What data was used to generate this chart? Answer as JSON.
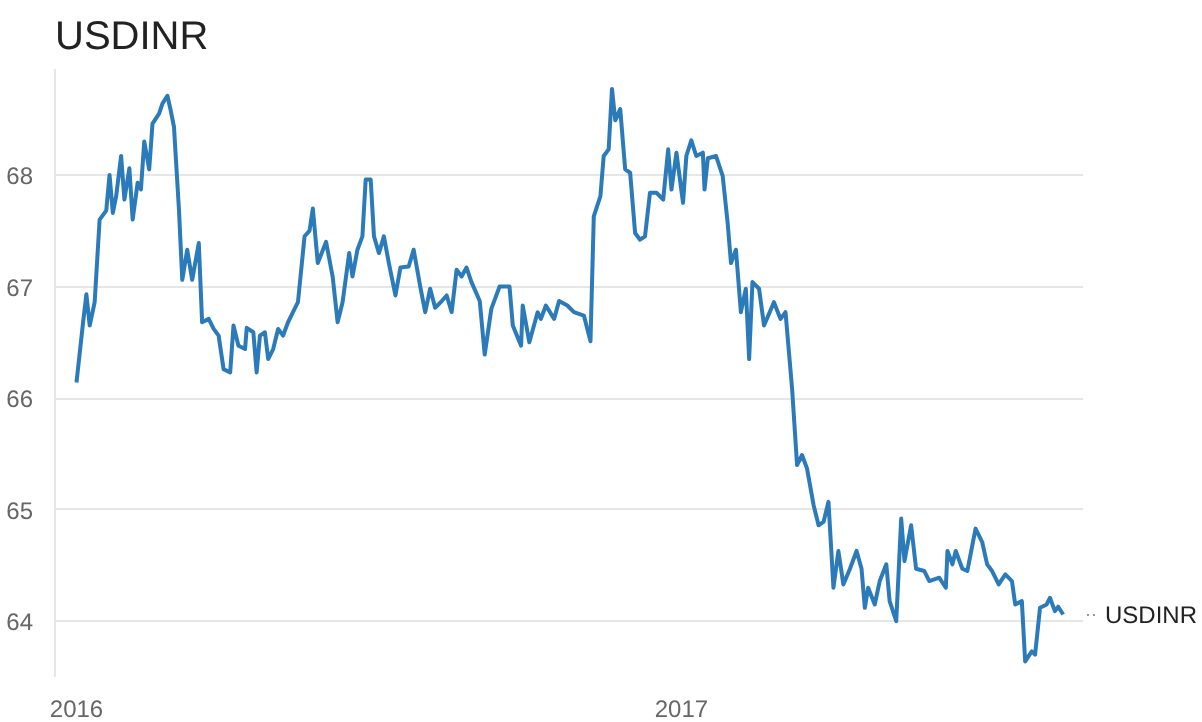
{
  "chart_data": {
    "type": "line",
    "title": "USDINR",
    "xlim": [
      "2015-12-19",
      "2017-09-01"
    ],
    "ylim": [
      63.5,
      68.95
    ],
    "xticks": [
      {
        "value": "2016-01-01",
        "label": "2016"
      },
      {
        "value": "2017-01-01",
        "label": "2017"
      }
    ],
    "yticks": [
      64,
      65,
      66,
      67,
      68
    ],
    "grid": "y",
    "legend": false,
    "x": [
      "2016-01-01",
      "2016-01-05",
      "2016-01-07",
      "2016-01-09",
      "2016-01-12",
      "2016-01-15",
      "2016-01-19",
      "2016-01-21",
      "2016-01-23",
      "2016-01-25",
      "2016-01-28",
      "2016-01-30",
      "2016-02-02",
      "2016-02-04",
      "2016-02-07",
      "2016-02-09",
      "2016-02-11",
      "2016-02-14",
      "2016-02-16",
      "2016-02-20",
      "2016-02-22",
      "2016-02-25",
      "2016-02-27",
      "2016-02-29",
      "2016-03-03",
      "2016-03-05",
      "2016-03-08",
      "2016-03-11",
      "2016-03-15",
      "2016-03-17",
      "2016-03-21",
      "2016-03-24",
      "2016-03-27",
      "2016-03-30",
      "2016-04-03",
      "2016-04-05",
      "2016-04-08",
      "2016-04-12",
      "2016-04-13",
      "2016-04-17",
      "2016-04-19",
      "2016-04-21",
      "2016-04-24",
      "2016-04-26",
      "2016-04-29",
      "2016-05-02",
      "2016-05-05",
      "2016-05-08",
      "2016-05-11",
      "2016-05-14",
      "2016-05-18",
      "2016-05-21",
      "2016-05-23",
      "2016-05-26",
      "2016-05-31",
      "2016-06-04",
      "2016-06-07",
      "2016-06-10",
      "2016-06-14",
      "2016-06-16",
      "2016-06-19",
      "2016-06-22",
      "2016-06-24",
      "2016-06-27",
      "2016-06-29",
      "2016-07-02",
      "2016-07-05",
      "2016-07-08",
      "2016-07-12",
      "2016-07-15",
      "2016-07-20",
      "2016-07-23",
      "2016-07-27",
      "2016-07-30",
      "2016-08-02",
      "2016-08-05",
      "2016-08-09",
      "2016-08-12",
      "2016-08-15",
      "2016-08-18",
      "2016-08-21",
      "2016-08-24",
      "2016-08-27",
      "2016-09-01",
      "2016-09-04",
      "2016-09-08",
      "2016-09-13",
      "2016-09-19",
      "2016-09-21",
      "2016-09-26",
      "2016-09-27",
      "2016-10-01",
      "2016-10-06",
      "2016-10-08",
      "2016-10-11",
      "2016-10-16",
      "2016-10-19",
      "2016-10-24",
      "2016-10-28",
      "2016-11-03",
      "2016-11-07",
      "2016-11-09",
      "2016-11-13",
      "2016-11-15",
      "2016-11-18",
      "2016-11-20",
      "2016-11-22",
      "2016-11-25",
      "2016-11-28",
      "2016-12-01",
      "2016-12-04",
      "2016-12-07",
      "2016-12-10",
      "2016-12-13",
      "2016-12-17",
      "2016-12-21",
      "2016-12-24",
      "2016-12-26",
      "2016-12-29",
      "2017-01-02",
      "2017-01-04",
      "2017-01-07",
      "2017-01-10",
      "2017-01-14",
      "2017-01-15",
      "2017-01-17",
      "2017-01-22",
      "2017-01-26",
      "2017-01-29",
      "2017-01-31",
      "2017-02-03",
      "2017-02-06",
      "2017-02-09",
      "2017-02-11",
      "2017-02-13",
      "2017-02-17",
      "2017-02-20",
      "2017-02-26",
      "2017-03-02",
      "2017-03-05",
      "2017-03-09",
      "2017-03-12",
      "2017-03-15",
      "2017-03-18",
      "2017-03-22",
      "2017-03-25",
      "2017-03-28",
      "2017-03-31",
      "2017-04-03",
      "2017-04-06",
      "2017-04-09",
      "2017-04-13",
      "2017-04-17",
      "2017-04-20",
      "2017-04-22",
      "2017-04-24",
      "2017-04-28",
      "2017-05-01",
      "2017-05-05",
      "2017-05-07",
      "2017-05-11",
      "2017-05-14",
      "2017-05-16",
      "2017-05-20",
      "2017-05-23",
      "2017-05-28",
      "2017-05-31",
      "2017-06-06",
      "2017-06-10",
      "2017-06-11",
      "2017-06-14",
      "2017-06-16",
      "2017-06-20",
      "2017-06-23",
      "2017-06-28",
      "2017-07-02",
      "2017-07-05",
      "2017-07-08",
      "2017-07-12",
      "2017-07-16",
      "2017-07-20",
      "2017-07-22",
      "2017-07-26",
      "2017-07-28",
      "2017-08-01",
      "2017-08-03",
      "2017-08-06",
      "2017-08-10",
      "2017-08-12",
      "2017-08-15",
      "2017-08-17",
      "2017-08-20"
    ],
    "series": [
      {
        "name": "USDINR",
        "color": "#2b7bba",
        "values": [
          66.14,
          66.68,
          66.93,
          66.65,
          66.86,
          67.6,
          67.68,
          68.0,
          67.66,
          67.81,
          68.17,
          67.78,
          68.06,
          67.6,
          67.93,
          67.87,
          68.3,
          68.05,
          68.46,
          68.55,
          68.64,
          68.71,
          68.58,
          68.43,
          67.69,
          67.06,
          67.33,
          67.06,
          67.39,
          66.68,
          66.71,
          66.62,
          66.56,
          66.26,
          66.23,
          66.65,
          66.47,
          66.44,
          66.63,
          66.59,
          66.23,
          66.56,
          66.59,
          66.35,
          66.44,
          66.62,
          66.56,
          66.68,
          66.77,
          66.86,
          67.45,
          67.5,
          67.7,
          67.21,
          67.4,
          67.09,
          66.68,
          66.86,
          67.3,
          67.09,
          67.33,
          67.45,
          67.96,
          67.96,
          67.45,
          67.3,
          67.45,
          67.21,
          66.92,
          67.17,
          67.18,
          67.33,
          67.0,
          66.77,
          66.98,
          66.81,
          66.87,
          66.92,
          66.77,
          67.15,
          67.09,
          67.17,
          67.04,
          66.87,
          66.39,
          66.8,
          67.0,
          67.0,
          66.65,
          66.47,
          66.83,
          66.5,
          66.77,
          66.71,
          66.83,
          66.71,
          66.87,
          66.83,
          66.77,
          66.74,
          66.51,
          67.63,
          67.81,
          68.17,
          68.23,
          68.77,
          68.49,
          68.59,
          68.05,
          68.02,
          67.48,
          67.42,
          67.45,
          67.84,
          67.84,
          67.78,
          68.23,
          67.87,
          68.2,
          67.75,
          68.17,
          68.31,
          68.17,
          68.2,
          67.87,
          68.15,
          68.17,
          67.99,
          67.57,
          67.21,
          67.33,
          66.77,
          66.98,
          66.35,
          67.04,
          66.98,
          66.65,
          66.86,
          66.71,
          66.77,
          66.08,
          65.4,
          65.49,
          65.37,
          65.04,
          64.86,
          64.89,
          65.07,
          64.3,
          64.63,
          64.33,
          64.47,
          64.63,
          64.47,
          64.12,
          64.3,
          64.15,
          64.36,
          64.51,
          64.18,
          64.0,
          64.92,
          64.54,
          64.86,
          64.47,
          64.45,
          64.36,
          64.39,
          64.3,
          64.63,
          64.51,
          64.63,
          64.47,
          64.45,
          64.83,
          64.71,
          64.51,
          64.45,
          64.33,
          64.42,
          64.36,
          64.15,
          64.18,
          63.64,
          63.73,
          63.7,
          64.12,
          64.15,
          64.21,
          64.09,
          64.13,
          64.06
        ]
      }
    ]
  }
}
